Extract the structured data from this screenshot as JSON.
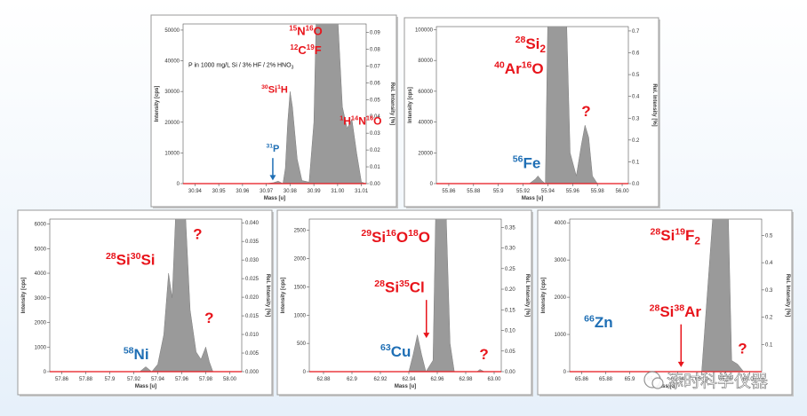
{
  "chart_data": [
    {
      "type": "area",
      "xlabel": "Mass [u]",
      "ylabel": "Intensity [cps]",
      "y2label": "Rel. Intensity [%]",
      "color": "#9a9a9a",
      "note": "P in 1000 mg/L Si / 3% HF / 2% HNO",
      "note_sub": "3",
      "x": [
        30.935,
        30.97,
        30.973,
        30.975,
        30.977,
        30.978,
        30.979,
        30.98,
        30.981,
        30.983,
        30.985,
        30.988,
        30.99,
        30.991,
        31.0,
        31.002,
        31.004,
        31.006,
        31.008,
        31.01,
        31.012
      ],
      "values": [
        0,
        0,
        300,
        800,
        0,
        5000,
        20000,
        30000,
        25000,
        8000,
        1000,
        500,
        20000,
        55000,
        55000,
        25000,
        18000,
        21000,
        10000,
        500,
        0
      ],
      "xlim": [
        30.935,
        31.012
      ],
      "xticks": [
        30.94,
        30.95,
        30.96,
        30.97,
        30.98,
        30.99,
        {
          "value": 31,
          "label": "31.00"
        },
        31.01
      ],
      "ylim": [
        0,
        52000
      ],
      "yticks": [
        0,
        10000,
        20000,
        30000,
        40000,
        50000
      ],
      "y2lim": [
        0,
        0.095
      ],
      "y2ticks": [
        {
          "value": 0,
          "label": "0.00"
        },
        0.01,
        0.02,
        0.03,
        0.04,
        0.05,
        0.06,
        0.07,
        0.08,
        0.09
      ],
      "annotations": [
        {
          "color": "#e8141b",
          "parts": [
            {
              "sup": "15",
              "el": "N"
            },
            {
              "sup": "16",
              "el": "O"
            }
          ]
        },
        {
          "color": "#e8141b",
          "parts": [
            {
              "sup": "12",
              "el": "C"
            },
            {
              "sup": "19",
              "el": "F"
            }
          ]
        },
        {
          "color": "#e8141b",
          "parts": [
            {
              "sup": "30",
              "el": "Si"
            },
            {
              "sup": "1",
              "el": "H"
            }
          ]
        },
        {
          "color": "#e8141b",
          "parts": [
            {
              "sup": "1",
              "el": "H"
            },
            {
              "sup": "14",
              "el": "N"
            },
            {
              "sup": "16",
              "el": "O"
            }
          ]
        },
        {
          "color": "#1f6fb5",
          "parts": [
            {
              "sup": "31",
              "el": "P"
            }
          ]
        }
      ]
    },
    {
      "type": "area",
      "xlabel": "Mass [u]",
      "ylabel": "Intensity [cps]",
      "y2label": "Rel. Intensity [%]",
      "color": "#9a9a9a",
      "x": [
        55.85,
        55.925,
        55.93,
        55.932,
        55.935,
        55.938,
        55.94,
        55.955,
        55.958,
        55.963,
        55.967,
        55.97,
        55.973,
        55.976,
        55.98,
        56.005
      ],
      "values": [
        0,
        0,
        3000,
        5000,
        2000,
        0,
        110000,
        110000,
        20000,
        5000,
        25000,
        38000,
        30000,
        5000,
        0,
        0
      ],
      "xlim": [
        55.85,
        56.005
      ],
      "xticks": [
        55.86,
        55.88,
        55.9,
        55.92,
        55.94,
        55.96,
        55.98,
        {
          "value": 56,
          "label": "56.00"
        }
      ],
      "ylim": [
        0,
        102000
      ],
      "yticks": [
        0,
        20000,
        40000,
        60000,
        80000,
        100000
      ],
      "y2lim": [
        0,
        0.72
      ],
      "y2ticks": [
        {
          "value": 0,
          "label": "0.0"
        },
        0.1,
        0.2,
        0.3,
        0.4,
        0.5,
        0.6,
        0.7
      ],
      "annotations": [
        {
          "color": "#e8141b",
          "parts": [
            {
              "sup": "28",
              "el": "Si",
              "sub": "2"
            }
          ]
        },
        {
          "color": "#e8141b",
          "parts": [
            {
              "sup": "40",
              "el": "Ar"
            },
            {
              "sup": "16",
              "el": "O"
            }
          ]
        },
        {
          "color": "#e8141b",
          "parts": [
            {
              "el": "?"
            }
          ]
        },
        {
          "color": "#1f6fb5",
          "parts": [
            {
              "sup": "56",
              "el": "Fe"
            }
          ]
        }
      ]
    },
    {
      "type": "area",
      "xlabel": "Mass [u]",
      "ylabel": "Intensity [cps]",
      "y2label": "Rel. Intensity [%]",
      "color": "#9a9a9a",
      "x": [
        57.85,
        57.925,
        57.93,
        57.935,
        57.94,
        57.945,
        57.949,
        57.952,
        57.955,
        57.963,
        57.967,
        57.972,
        57.976,
        57.98,
        57.983,
        57.986,
        58.01
      ],
      "values": [
        0,
        0,
        200,
        0,
        300,
        1500,
        4000,
        3000,
        6500,
        6500,
        2500,
        800,
        500,
        1000,
        400,
        0,
        0
      ],
      "xlim": [
        57.85,
        58.01
      ],
      "xticks": [
        57.86,
        57.88,
        57.9,
        57.92,
        57.94,
        57.96,
        57.98,
        {
          "value": 58,
          "label": "58.00"
        }
      ],
      "ylim": [
        0,
        6200
      ],
      "yticks": [
        0,
        1000,
        2000,
        3000,
        4000,
        5000,
        6000
      ],
      "y2lim": [
        0,
        0.041
      ],
      "y2ticks": [
        {
          "value": 0,
          "label": "0.000"
        },
        {
          "value": 0.005,
          "label": "0.005"
        },
        {
          "value": 0.01,
          "label": "0.010"
        },
        {
          "value": 0.015,
          "label": "0.015"
        },
        {
          "value": 0.02,
          "label": "0.020"
        },
        {
          "value": 0.025,
          "label": "0.025"
        },
        {
          "value": 0.03,
          "label": "0.030"
        },
        {
          "value": 0.035,
          "label": "0.035"
        },
        {
          "value": 0.04,
          "label": "0.040"
        }
      ],
      "annotations": [
        {
          "color": "#e8141b",
          "parts": [
            {
              "sup": "28",
              "el": "Si"
            },
            {
              "sup": "30",
              "el": "Si"
            }
          ]
        },
        {
          "color": "#e8141b",
          "parts": [
            {
              "el": "?"
            }
          ]
        },
        {
          "color": "#e8141b",
          "parts": [
            {
              "el": "?"
            }
          ]
        },
        {
          "color": "#1f6fb5",
          "parts": [
            {
              "sup": "58",
              "el": "Ni"
            }
          ]
        }
      ]
    },
    {
      "type": "area",
      "xlabel": "Mass [u]",
      "ylabel": "Intensity [cps]",
      "y2label": "Rel. Intensity [%]",
      "color": "#9a9a9a",
      "x": [
        62.87,
        62.94,
        62.943,
        62.946,
        62.949,
        62.952,
        62.957,
        62.959,
        62.966,
        62.969,
        62.972,
        62.988,
        62.99,
        62.993,
        63.005
      ],
      "values": [
        0,
        0,
        300,
        650,
        300,
        0,
        200,
        3000,
        3000,
        500,
        0,
        0,
        40,
        0,
        0
      ],
      "xlim": [
        62.87,
        63.005
      ],
      "xticks": [
        62.88,
        62.9,
        62.92,
        62.94,
        62.96,
        62.98,
        {
          "value": 63,
          "label": "63.00"
        }
      ],
      "ylim": [
        0,
        2700
      ],
      "yticks": [
        0,
        500,
        1000,
        1500,
        2000,
        2500
      ],
      "y2lim": [
        0,
        0.37
      ],
      "y2ticks": [
        {
          "value": 0,
          "label": "0.00"
        },
        0.05,
        {
          "value": 0.1,
          "label": "0.10"
        },
        0.15,
        {
          "value": 0.2,
          "label": "0.20"
        },
        0.25,
        {
          "value": 0.3,
          "label": "0.30"
        },
        0.35
      ],
      "annotations": [
        {
          "color": "#e8141b",
          "parts": [
            {
              "sup": "29",
              "el": "Si"
            },
            {
              "sup": "16",
              "el": "O"
            },
            {
              "sup": "18",
              "el": "O"
            }
          ]
        },
        {
          "color": "#e8141b",
          "parts": [
            {
              "sup": "28",
              "el": "Si"
            },
            {
              "sup": "35",
              "el": "Cl"
            }
          ]
        },
        {
          "color": "#1f6fb5",
          "parts": [
            {
              "sup": "63",
              "el": "Cu"
            }
          ]
        },
        {
          "color": "#e8141b",
          "parts": [
            {
              "el": "?"
            }
          ]
        }
      ]
    },
    {
      "type": "area",
      "xlabel": "Mass [u]",
      "ylabel": "Intensity [cps]",
      "y2label": "Rel. Intensity [%]",
      "color": "#9a9a9a",
      "x": [
        65.85,
        65.96,
        65.97,
        65.982,
        65.985,
        65.99,
        65.995,
        66.01
      ],
      "values": [
        0,
        0,
        4500,
        4500,
        300,
        200,
        0,
        0
      ],
      "xlim": [
        65.85,
        66.01
      ],
      "xticks": [
        65.86,
        65.88,
        65.9,
        65.92,
        65.94,
        65.96,
        65.98,
        {
          "value": 66,
          "label": "66.00"
        }
      ],
      "ylim": [
        0,
        4100
      ],
      "yticks": [
        0,
        1000,
        2000,
        3000,
        4000
      ],
      "y2lim": [
        0,
        0.56
      ],
      "y2ticks": [
        0.1,
        0.2,
        0.3,
        0.4,
        0.5
      ],
      "annotations": [
        {
          "color": "#e8141b",
          "parts": [
            {
              "sup": "28",
              "el": "Si"
            },
            {
              "sup": "19",
              "el": "F",
              "sub": "2"
            }
          ]
        },
        {
          "color": "#1f6fb5",
          "parts": [
            {
              "sup": "66",
              "el": "Zn"
            }
          ]
        },
        {
          "color": "#e8141b",
          "parts": [
            {
              "sup": "28",
              "el": "Si"
            },
            {
              "sup": "38",
              "el": "Ar"
            }
          ]
        },
        {
          "color": "#e8141b",
          "parts": [
            {
              "el": "?"
            }
          ]
        }
      ]
    }
  ],
  "watermark": "添时科学仪器"
}
